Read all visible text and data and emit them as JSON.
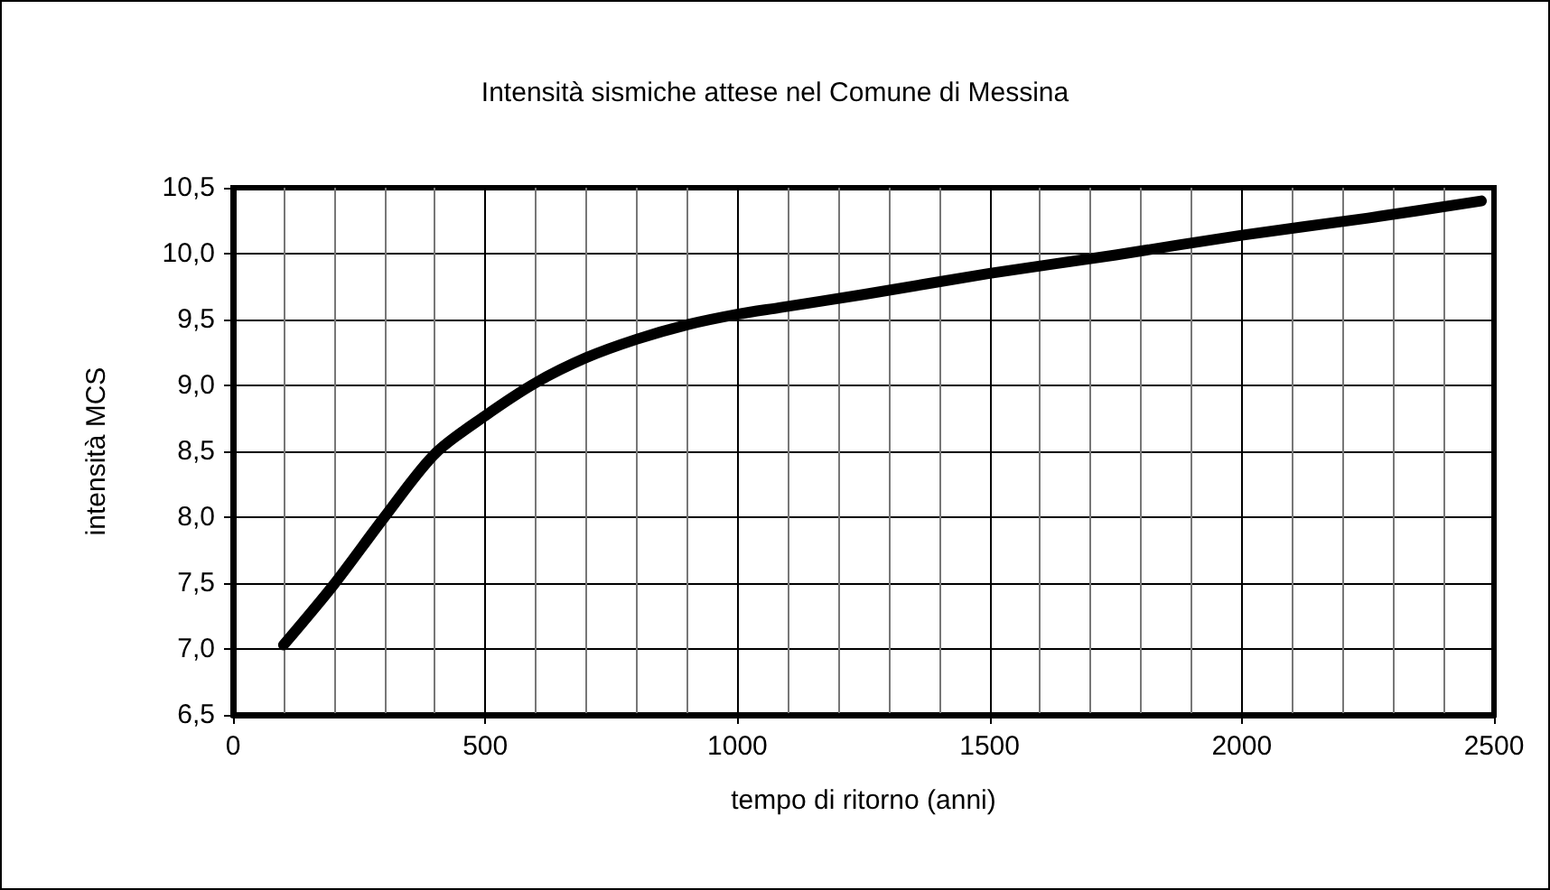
{
  "chart_data": {
    "type": "line",
    "title": "Intensità sismiche attese nel Comune di Messina",
    "xlabel": "tempo di ritorno (anni)",
    "ylabel": "intensità MCS",
    "x": [
      100,
      200,
      300,
      400,
      500,
      600,
      700,
      800,
      900,
      1000,
      1083,
      1250,
      1500,
      1750,
      2000,
      2250,
      2475
    ],
    "series": [
      {
        "color": "#000000",
        "values": [
          7.03,
          7.49,
          8.0,
          8.48,
          8.77,
          9.02,
          9.21,
          9.35,
          9.46,
          9.54,
          9.59,
          9.69,
          9.85,
          9.99,
          10.14,
          10.27,
          10.4
        ]
      }
    ],
    "xlim": [
      0,
      2500
    ],
    "xticks": [
      0,
      500,
      1000,
      1500,
      2000,
      2500
    ],
    "ylim": [
      6.5,
      10.5
    ],
    "yticks": [
      {
        "value": 6.5,
        "label": "6,5"
      },
      {
        "value": 7,
        "label": "7,0"
      },
      {
        "value": 7.5,
        "label": "7,5"
      },
      {
        "value": 8,
        "label": "8,0"
      },
      {
        "value": 8.5,
        "label": "8,5"
      },
      {
        "value": 9,
        "label": "9,0"
      },
      {
        "value": 9.5,
        "label": "9,5"
      },
      {
        "value": 10,
        "label": "10,0"
      },
      {
        "value": 10.5,
        "label": "10,5"
      }
    ],
    "grid": true,
    "marker": "none",
    "line_style": "solid"
  }
}
